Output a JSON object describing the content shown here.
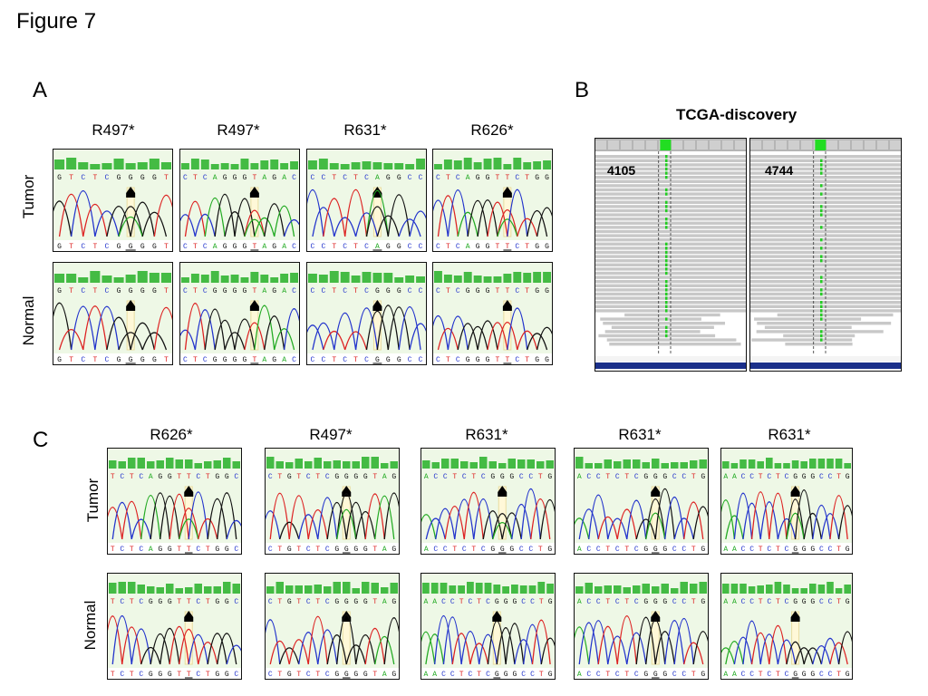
{
  "figure_title": "Figure 7",
  "panels": {
    "A": {
      "letter": "A",
      "columns": [
        "R497*",
        "R497*",
        "R631*",
        "R626*"
      ],
      "rows": [
        "Tumor",
        "Normal"
      ],
      "sequences": {
        "tumor": [
          "GTCTCGGGGT",
          "CTCAGGGTAGAC",
          "CCTCTCAGGCC",
          "CTCAGGTTCTGG"
        ],
        "normal": [
          "GTCTCGGGGT",
          "CTCGGGGTAGAC",
          "CCTCTCGGGCC",
          "CTCGGGTTCTGG"
        ]
      }
    },
    "B": {
      "letter": "B",
      "title": "TCGA-discovery",
      "samples": [
        "4105",
        "4744"
      ]
    },
    "C": {
      "letter": "C",
      "columns": [
        "R626*",
        "R497*",
        "R631*",
        "R631*",
        "R631*"
      ],
      "rows": [
        "Tumor",
        "Normal"
      ],
      "sequences": {
        "tumor": [
          "TCTCAGGTTCTGGC",
          "CTGTCTCGGGGTAG",
          "ACCTCTCGGGCCTG",
          "ACCTCTCGGGCCTG",
          "AACCTCTCGGGCCTG"
        ],
        "normal": [
          "TCTCGGGTTCTGGC",
          "CTGTCTCGGGGTAG",
          "AACCTCTCGGGCCTG",
          "ACCTCTCGGGCCTG",
          "AACCTCTCGGGCCTG"
        ]
      }
    }
  },
  "colors": {
    "A": "#22aa22",
    "C": "#2233cc",
    "G": "#111111",
    "T": "#dd2222",
    "quality_bar": "#44bb44",
    "background": "#eef8e6",
    "igv_read": "#c8c8c8",
    "igv_mismatch": "#22cc22"
  }
}
